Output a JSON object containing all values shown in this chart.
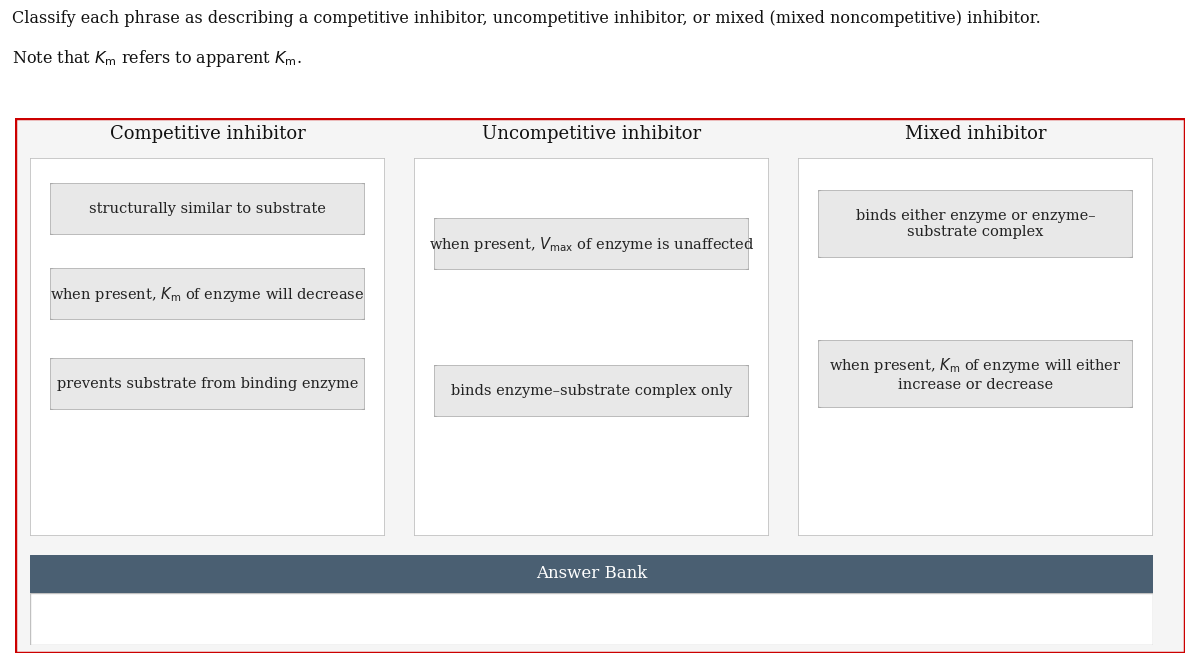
{
  "title_line1": "Classify each phrase as describing a competitive inhibitor, uncompetitive inhibitor, or mixed (mixed noncompetitive) inhibitor.",
  "title_line2_part1": "Note that ",
  "title_line2_km1": "$K_{\\mathrm{m}}$",
  "title_line2_part2": " refers to apparent ",
  "title_line2_km2": "$K_{\\mathrm{m}}$",
  "title_line2_part3": ".",
  "outer_border_color": "#cc0000",
  "bg_color": "#ffffff",
  "col_headers": [
    "Competitive inhibitor",
    "Uncompetitive inhibitor",
    "Mixed inhibitor"
  ],
  "card_bg": "#e8e8e8",
  "card_edge": "#aaaaaa",
  "col_box_bg": "#ffffff",
  "col_box_edge": "#bbbbbb",
  "outer_box_bg": "#f5f5f5",
  "comp_cards": [
    "structurally similar to substrate",
    "when present, $K_{\\mathrm{m}}$ of enzyme will decrease",
    "prevents substrate from binding enzyme"
  ],
  "uncomp_cards": [
    "when present, $V_{\\mathrm{max}}$ of enzyme is unaffected",
    "binds enzyme–substrate complex only"
  ],
  "mixed_cards": [
    "binds either enzyme or enzyme–\nsubstrate complex",
    "when present, $K_{\\mathrm{m}}$ of enzyme will either\nincrease or decrease"
  ],
  "answer_bank_bg": "#4a5f72",
  "answer_bank_text": "Answer Bank",
  "answer_bank_text_color": "#ffffff"
}
